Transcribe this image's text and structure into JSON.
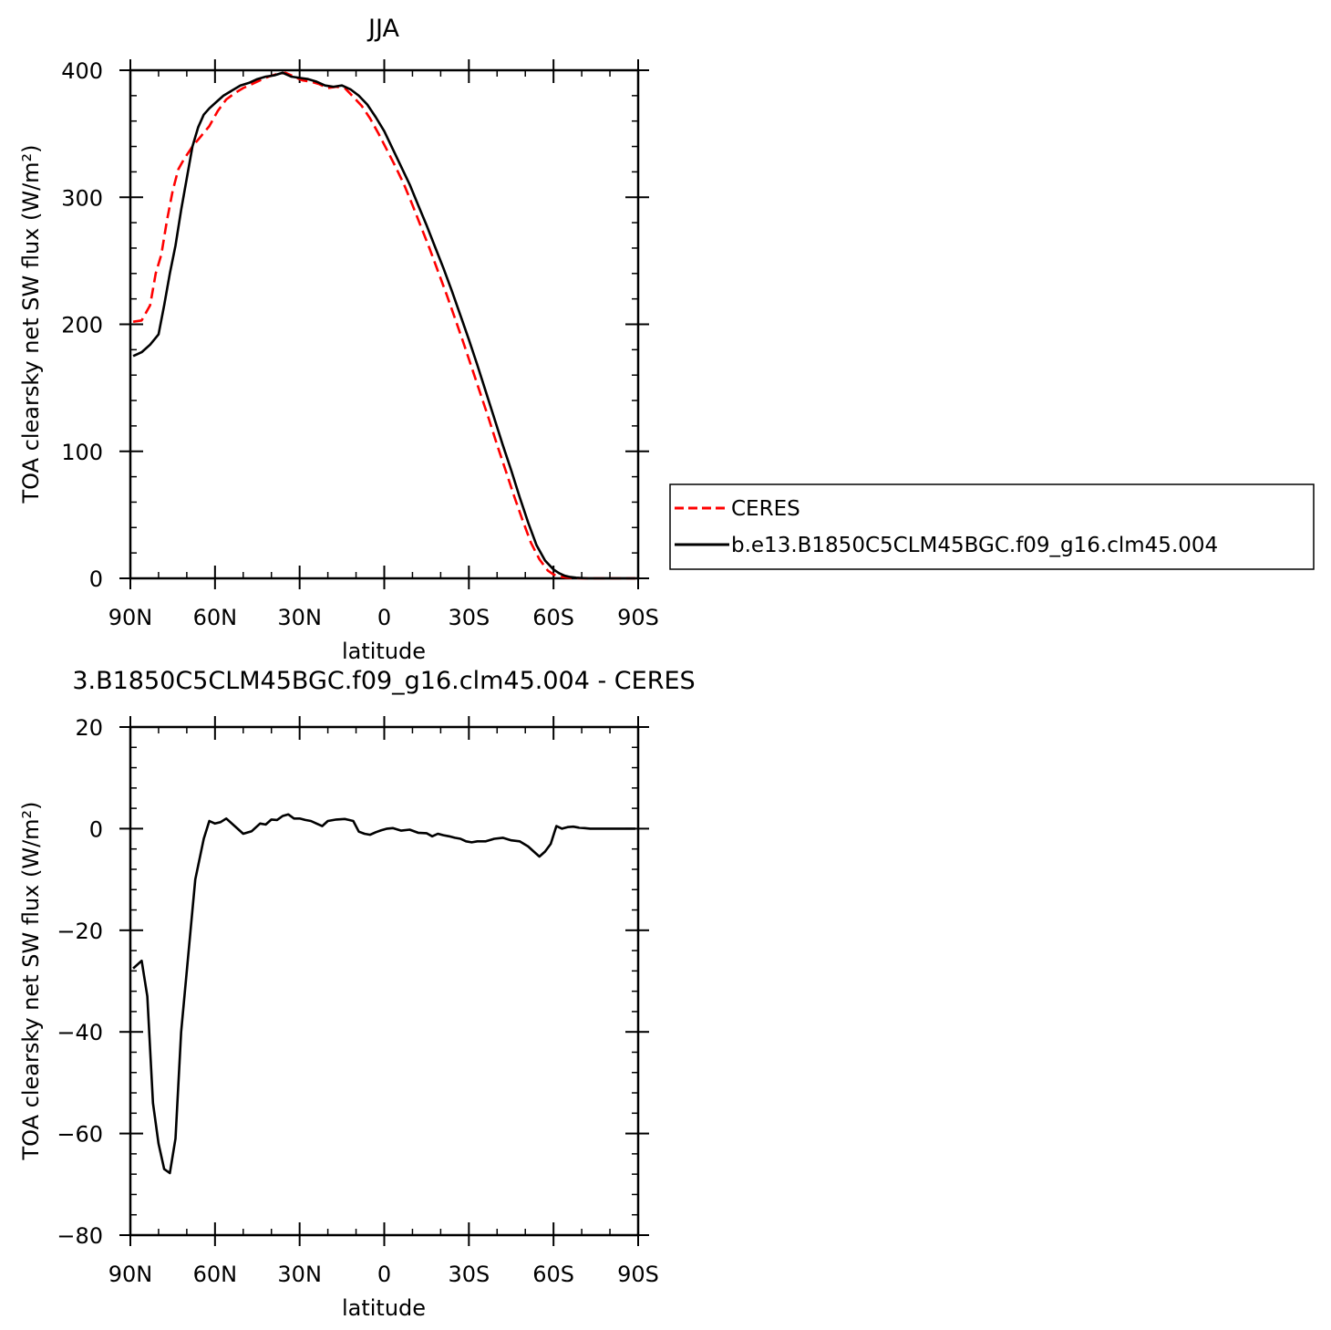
{
  "chart_data": [
    {
      "type": "line",
      "title": "JJA",
      "xlabel": "latitude",
      "ylabel": "TOA clearsky net SW flux (W/m²)",
      "ylim": [
        0,
        400
      ],
      "xlim": [
        90,
        -90
      ],
      "xticks": [
        90,
        60,
        30,
        0,
        -30,
        -60,
        -90
      ],
      "xtick_labels": [
        "90N",
        "60N",
        "30N",
        "0",
        "30S",
        "60S",
        "90S"
      ],
      "yticks": [
        0,
        100,
        200,
        300,
        400
      ],
      "ytick_labels": [
        "0",
        "100",
        "200",
        "300",
        "400"
      ],
      "grid": false,
      "legend_position": "right",
      "series": [
        {
          "name": "CERES",
          "color": "#ff0000",
          "dash": "dashed",
          "x": [
            89,
            86,
            83,
            81,
            79,
            77,
            75,
            73,
            71,
            68,
            65,
            62,
            59,
            56,
            53,
            50,
            47,
            44,
            41,
            38,
            35,
            32,
            29,
            26,
            23,
            20,
            17,
            14,
            11,
            8,
            5,
            2,
            -1,
            -4,
            -7,
            -10,
            -13,
            -16,
            -19,
            -22,
            -25,
            -28,
            -31,
            -34,
            -37,
            -40,
            -43,
            -46,
            -49,
            -52,
            -55,
            -58,
            -60,
            -62,
            -64,
            -66,
            -68,
            -70,
            -72,
            -75,
            -78,
            -81,
            -84,
            -87,
            -89
          ],
          "y": [
            202,
            203,
            215,
            240,
            255,
            282,
            305,
            322,
            330,
            340,
            348,
            356,
            368,
            377,
            382,
            386,
            389,
            392,
            395,
            397,
            398,
            395,
            392,
            391,
            389,
            386,
            387,
            386,
            379,
            372,
            362,
            350,
            337,
            324,
            310,
            294,
            277,
            260,
            242,
            224,
            205,
            186,
            166,
            146,
            126,
            105,
            85,
            65,
            46,
            28,
            15,
            6,
            3,
            1.5,
            0.8,
            0.4,
            0.2,
            0.1,
            0,
            0,
            0,
            0,
            0,
            0,
            0
          ]
        },
        {
          "name": "b.e13.B1850C5CLM45BGC.f09_g16.clm45.004",
          "color": "#000000",
          "dash": "solid",
          "x": [
            89,
            86,
            83,
            80,
            78,
            76,
            74,
            72,
            70,
            68,
            66,
            64,
            62,
            59,
            57,
            54,
            51,
            48,
            45,
            42,
            39,
            36,
            33,
            30,
            27,
            24,
            21,
            18,
            15,
            12,
            9,
            6,
            3,
            0,
            -3,
            -6,
            -9,
            -12,
            -15,
            -18,
            -21,
            -24,
            -27,
            -30,
            -33,
            -36,
            -39,
            -42,
            -45,
            -48,
            -51,
            -54,
            -57,
            -60,
            -62,
            -64,
            -66,
            -68,
            -70,
            -72,
            -75,
            -78,
            -81,
            -84,
            -87,
            -89
          ],
          "y": [
            175,
            178,
            184,
            192,
            215,
            240,
            262,
            290,
            315,
            340,
            355,
            365,
            370,
            376,
            380,
            384,
            388,
            390,
            393,
            395,
            396,
            398,
            395,
            394,
            393,
            391,
            388,
            387,
            388,
            385,
            380,
            373,
            363,
            352,
            338,
            324,
            310,
            294,
            278,
            261,
            244,
            226,
            207,
            188,
            168,
            147,
            126,
            105,
            85,
            64,
            44,
            26,
            14,
            7,
            4,
            2,
            1,
            0.5,
            0.2,
            0,
            0,
            0,
            0,
            0,
            0,
            0
          ]
        }
      ]
    },
    {
      "type": "line",
      "title": "3.B1850C5CLM45BGC.f09_g16.clm45.004 - CERES",
      "xlabel": "latitude",
      "ylabel": "TOA clearsky net SW flux (W/m²)",
      "ylim": [
        -80,
        20
      ],
      "xlim": [
        90,
        -90
      ],
      "xticks": [
        90,
        60,
        30,
        0,
        -30,
        -60,
        -90
      ],
      "xtick_labels": [
        "90N",
        "60N",
        "30N",
        "0",
        "30S",
        "60S",
        "90S"
      ],
      "yticks": [
        -80,
        -60,
        -40,
        -20,
        0,
        20
      ],
      "ytick_labels": [
        "−80",
        "−60",
        "−40",
        "−20",
        "0",
        "20"
      ],
      "grid": false,
      "series": [
        {
          "color": "#000000",
          "dash": "solid",
          "x": [
            89,
            86,
            84,
            82,
            80,
            78,
            76,
            74,
            72,
            70,
            67,
            64,
            62,
            60,
            58,
            56,
            53,
            50,
            47,
            44,
            42,
            40,
            38,
            36,
            34,
            32,
            30,
            28,
            26,
            24,
            22,
            20,
            17,
            14,
            11,
            9,
            7,
            5,
            3,
            1,
            -1,
            -3,
            -6,
            -9,
            -12,
            -15,
            -17,
            -19,
            -21,
            -23,
            -25,
            -27,
            -29,
            -31,
            -33,
            -36,
            -39,
            -42,
            -45,
            -48,
            -51,
            -53,
            -55,
            -57,
            -59,
            -61,
            -63,
            -65,
            -67,
            -69,
            -71,
            -73,
            -75,
            -78,
            -81,
            -84,
            -87,
            -89
          ],
          "y": [
            -27.5,
            -26,
            -33,
            -54,
            -62,
            -67,
            -67.8,
            -61,
            -40,
            -28,
            -10,
            -2,
            1.5,
            1,
            1.3,
            2,
            0.5,
            -1,
            -0.5,
            1,
            0.8,
            1.8,
            1.7,
            2.5,
            2.8,
            2,
            2,
            1.7,
            1.5,
            1,
            0.5,
            1.5,
            1.8,
            1.9,
            1.5,
            -0.6,
            -1,
            -1.2,
            -0.7,
            -0.3,
            0,
            0.1,
            -0.4,
            -0.2,
            -0.8,
            -0.9,
            -1.5,
            -1,
            -1.3,
            -1.5,
            -1.8,
            -2,
            -2.5,
            -2.7,
            -2.5,
            -2.5,
            -2,
            -1.8,
            -2.3,
            -2.5,
            -3.5,
            -4.5,
            -5.5,
            -4.5,
            -3,
            0.5,
            0,
            0.3,
            0.4,
            0.2,
            0.1,
            0,
            0,
            0,
            0,
            0,
            0,
            0
          ]
        }
      ]
    }
  ]
}
